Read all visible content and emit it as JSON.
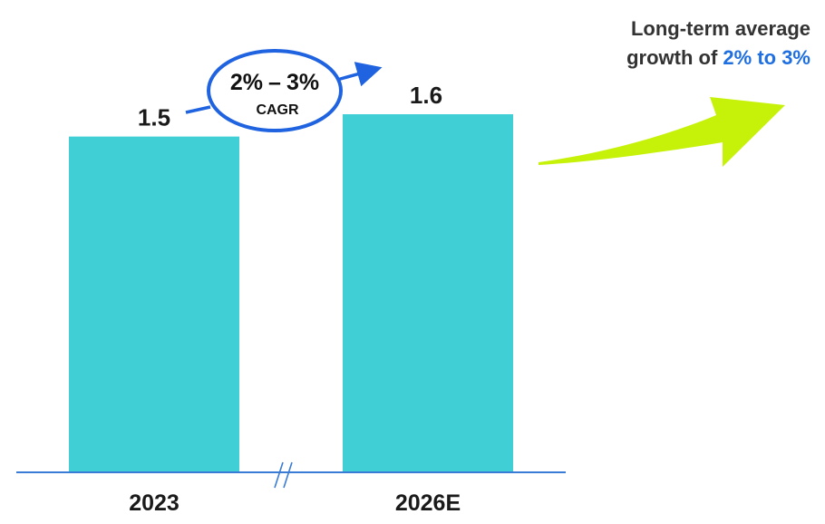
{
  "chart_data": {
    "type": "bar",
    "categories": [
      "2023",
      "2026E"
    ],
    "values": [
      1.5,
      1.6
    ],
    "value_labels": [
      "1.5",
      "1.6"
    ],
    "ylim": [
      0,
      1.6
    ],
    "grid": false,
    "axis_break": true,
    "colors": {
      "bar": "#40cfd4",
      "axis": "#3a7bd5",
      "cagr": "#1f63e0",
      "growth_arrow": "#c6f20a"
    }
  },
  "cagr": {
    "range_low": "2%",
    "dash": "–",
    "range_high": "3%",
    "label": "CAGR"
  },
  "headline": {
    "line1": "Long-term average",
    "line2_prefix": "growth of ",
    "line2_accent": "2% to 3%"
  }
}
